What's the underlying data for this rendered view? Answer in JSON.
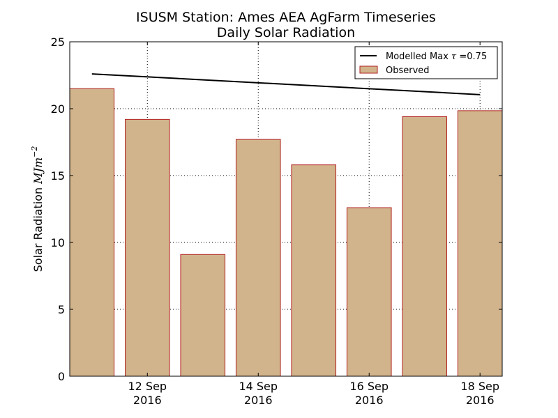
{
  "chart_data": {
    "type": "bar",
    "title": "ISUSM Station: Ames AEA AgFarm Timeseries",
    "subtitle": "Daily Solar Radiation",
    "ylabel_prefix": "Solar Radiation ",
    "ylabel_unit": "MJm",
    "ylabel_exp": "−2",
    "ylim": [
      0,
      25
    ],
    "yticks": [
      "0",
      "5",
      "10",
      "15",
      "20",
      "25"
    ],
    "ytick_values": [
      0,
      5,
      10,
      15,
      20,
      25
    ],
    "grid": true,
    "legend_placement": "top-right",
    "days": [
      {
        "date": "2016-09-11",
        "value": 21.5
      },
      {
        "date": "2016-09-12",
        "value": 19.2
      },
      {
        "date": "2016-09-13",
        "value": 9.1
      },
      {
        "date": "2016-09-14",
        "value": 17.7
      },
      {
        "date": "2016-09-15",
        "value": 15.8
      },
      {
        "date": "2016-09-16",
        "value": 12.6
      },
      {
        "date": "2016-09-17",
        "value": 19.4
      },
      {
        "date": "2016-09-18",
        "value": 19.85
      }
    ],
    "xticks": [
      {
        "date": "2016-09-12",
        "line1": "12 Sep",
        "line2": "2016"
      },
      {
        "date": "2016-09-14",
        "line1": "14 Sep",
        "line2": "2016"
      },
      {
        "date": "2016-09-16",
        "line1": "16 Sep",
        "line2": "2016"
      },
      {
        "date": "2016-09-18",
        "line1": "18 Sep",
        "line2": "2016"
      }
    ],
    "series": [
      {
        "name": "Observed",
        "kind": "bar",
        "fill": "#d2b48c",
        "edge": "#b22222"
      },
      {
        "name": "Modelled Max",
        "kind": "line",
        "color": "#000000",
        "x": [
          "2016-09-11",
          "2016-09-18"
        ],
        "values": [
          22.6,
          21.05
        ]
      }
    ],
    "legend": {
      "line_label_prefix": "Modelled Max ",
      "line_label_symbol": "τ",
      "line_label_suffix": " =0.75",
      "bar_label": "Observed"
    }
  }
}
